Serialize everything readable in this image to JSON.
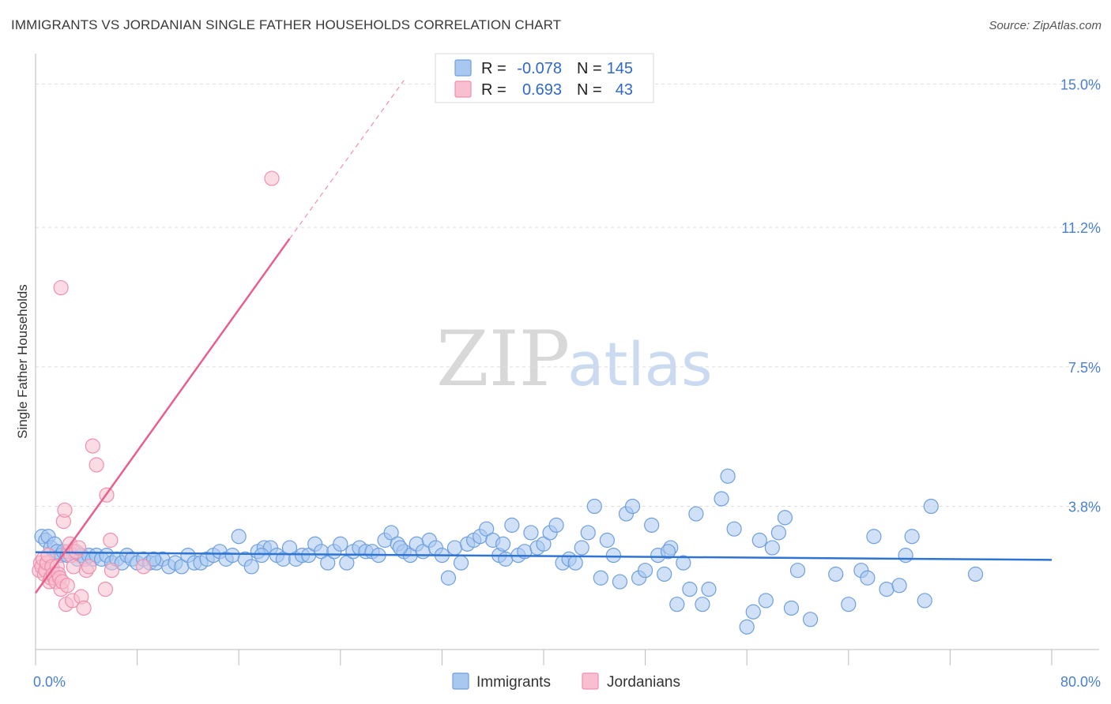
{
  "header": {
    "title": "IMMIGRANTS VS JORDANIAN SINGLE FATHER HOUSEHOLDS CORRELATION CHART",
    "source": "Source: ZipAtlas.com"
  },
  "watermark": {
    "zip": "ZIP",
    "atlas": "atlas"
  },
  "legend": {
    "r_label": "R =",
    "n_label": "N =",
    "immigrants": {
      "r": "-0.078",
      "n": "145"
    },
    "jordanians": {
      "r": "0.693",
      "n": "43"
    }
  },
  "colors": {
    "immigrants_fill": "#a9c8f0",
    "immigrants_stroke": "#6e9fe0",
    "immigrants_line": "#2e74d2",
    "jordanians_fill": "#f7bfd0",
    "jordanians_stroke": "#ef8fae",
    "jordanians_line": "#e8608a",
    "tick_label": "#4a7fd0",
    "grid": "#dddddd"
  },
  "chart_data": {
    "type": "scatter",
    "title": "IMMIGRANTS VS JORDANIAN SINGLE FATHER HOUSEHOLDS CORRELATION CHART",
    "xlabel": "",
    "ylabel": "Single Father Households",
    "xlim": [
      0,
      80
    ],
    "ylim": [
      0,
      15.6
    ],
    "x_tick_labels": [
      "0.0%",
      "80.0%"
    ],
    "y_ticks": [
      3.8,
      7.5,
      11.2,
      15.0
    ],
    "y_tick_labels": [
      "3.8%",
      "7.5%",
      "11.2%",
      "15.0%"
    ],
    "grid": "horizontal dashed",
    "legend_position": "top-center",
    "series": [
      {
        "name": "Immigrants",
        "points": [
          [
            0.5,
            3.0
          ],
          [
            0.8,
            2.9
          ],
          [
            1.0,
            3.0
          ],
          [
            1.2,
            2.7
          ],
          [
            1.5,
            2.8
          ],
          [
            1.7,
            2.6
          ],
          [
            2.0,
            2.5
          ],
          [
            2.2,
            2.6
          ],
          [
            2.5,
            2.5
          ],
          [
            2.8,
            2.5
          ],
          [
            3.0,
            2.6
          ],
          [
            3.3,
            2.4
          ],
          [
            3.6,
            2.5
          ],
          [
            3.9,
            2.4
          ],
          [
            4.2,
            2.5
          ],
          [
            4.5,
            2.4
          ],
          [
            4.8,
            2.5
          ],
          [
            5.2,
            2.4
          ],
          [
            5.6,
            2.5
          ],
          [
            6.0,
            2.3
          ],
          [
            6.4,
            2.4
          ],
          [
            6.8,
            2.3
          ],
          [
            7.2,
            2.5
          ],
          [
            7.6,
            2.4
          ],
          [
            8.0,
            2.3
          ],
          [
            8.5,
            2.4
          ],
          [
            9.0,
            2.3
          ],
          [
            9.5,
            2.3
          ],
          [
            10.0,
            2.4
          ],
          [
            10.5,
            2.2
          ],
          [
            11.0,
            2.3
          ],
          [
            11.5,
            2.2
          ],
          [
            12.0,
            2.5
          ],
          [
            12.5,
            2.3
          ],
          [
            13.0,
            2.3
          ],
          [
            13.5,
            2.4
          ],
          [
            14.0,
            2.5
          ],
          [
            14.5,
            2.6
          ],
          [
            15.0,
            2.4
          ],
          [
            15.5,
            2.5
          ],
          [
            16.0,
            3.0
          ],
          [
            16.5,
            2.4
          ],
          [
            17.0,
            2.2
          ],
          [
            17.5,
            2.6
          ],
          [
            18.0,
            2.7
          ],
          [
            18.5,
            2.7
          ],
          [
            19.0,
            2.5
          ],
          [
            19.5,
            2.4
          ],
          [
            20.0,
            2.7
          ],
          [
            20.5,
            2.4
          ],
          [
            21.0,
            2.5
          ],
          [
            21.5,
            2.5
          ],
          [
            22.0,
            2.8
          ],
          [
            22.5,
            2.6
          ],
          [
            23.0,
            2.3
          ],
          [
            23.5,
            2.6
          ],
          [
            24.0,
            2.8
          ],
          [
            24.5,
            2.3
          ],
          [
            25.0,
            2.6
          ],
          [
            25.5,
            2.7
          ],
          [
            26.0,
            2.6
          ],
          [
            26.5,
            2.6
          ],
          [
            27.0,
            2.5
          ],
          [
            27.5,
            2.9
          ],
          [
            28.0,
            3.1
          ],
          [
            28.5,
            2.8
          ],
          [
            29.0,
            2.6
          ],
          [
            29.5,
            2.5
          ],
          [
            30.0,
            2.8
          ],
          [
            30.5,
            2.6
          ],
          [
            31.0,
            2.9
          ],
          [
            31.5,
            2.7
          ],
          [
            32.0,
            2.5
          ],
          [
            32.5,
            1.9
          ],
          [
            33.0,
            2.7
          ],
          [
            33.5,
            2.3
          ],
          [
            34.0,
            2.8
          ],
          [
            34.5,
            2.9
          ],
          [
            35.0,
            3.0
          ],
          [
            35.5,
            3.2
          ],
          [
            36.0,
            2.9
          ],
          [
            36.5,
            2.5
          ],
          [
            37.0,
            2.4
          ],
          [
            37.5,
            3.3
          ],
          [
            38.0,
            2.5
          ],
          [
            38.5,
            2.6
          ],
          [
            39.0,
            3.1
          ],
          [
            39.5,
            2.7
          ],
          [
            40.0,
            2.8
          ],
          [
            40.5,
            3.1
          ],
          [
            41.0,
            3.3
          ],
          [
            41.5,
            2.3
          ],
          [
            42.0,
            2.4
          ],
          [
            42.5,
            2.3
          ],
          [
            43.0,
            2.7
          ],
          [
            43.5,
            3.1
          ],
          [
            44.0,
            3.8
          ],
          [
            44.5,
            1.9
          ],
          [
            45.0,
            2.9
          ],
          [
            45.5,
            2.5
          ],
          [
            46.0,
            1.8
          ],
          [
            46.5,
            3.6
          ],
          [
            47.0,
            3.8
          ],
          [
            47.5,
            1.9
          ],
          [
            48.0,
            2.1
          ],
          [
            48.5,
            3.3
          ],
          [
            49.0,
            2.5
          ],
          [
            49.5,
            2.0
          ],
          [
            50.0,
            2.7
          ],
          [
            50.5,
            1.2
          ],
          [
            51.0,
            2.3
          ],
          [
            51.5,
            1.6
          ],
          [
            52.0,
            3.6
          ],
          [
            52.5,
            1.2
          ],
          [
            53.0,
            1.6
          ],
          [
            54.0,
            4.0
          ],
          [
            54.5,
            4.6
          ],
          [
            55.0,
            3.2
          ],
          [
            56.0,
            0.6
          ],
          [
            56.5,
            1.0
          ],
          [
            57.0,
            2.9
          ],
          [
            57.5,
            1.3
          ],
          [
            58.0,
            2.7
          ],
          [
            58.5,
            3.1
          ],
          [
            59.0,
            3.5
          ],
          [
            59.5,
            1.1
          ],
          [
            60.0,
            2.1
          ],
          [
            61.0,
            0.8
          ],
          [
            63.0,
            2.0
          ],
          [
            64.0,
            1.2
          ],
          [
            65.0,
            2.1
          ],
          [
            65.5,
            1.9
          ],
          [
            66.0,
            3.0
          ],
          [
            67.0,
            1.6
          ],
          [
            68.0,
            1.7
          ],
          [
            68.5,
            2.5
          ],
          [
            69.0,
            3.0
          ],
          [
            70.0,
            1.3
          ],
          [
            70.5,
            3.8
          ],
          [
            74.0,
            2.0
          ],
          [
            49.8,
            2.6
          ],
          [
            28.7,
            2.7
          ],
          [
            36.8,
            2.8
          ],
          [
            17.8,
            2.5
          ],
          [
            9.3,
            2.4
          ]
        ],
        "trend": {
          "x": [
            0,
            80
          ],
          "y": [
            2.58,
            2.38
          ]
        }
      },
      {
        "name": "Jordanians",
        "points": [
          [
            0.3,
            2.1
          ],
          [
            0.4,
            2.3
          ],
          [
            0.5,
            2.2
          ],
          [
            0.6,
            2.4
          ],
          [
            0.7,
            2.0
          ],
          [
            0.8,
            2.1
          ],
          [
            0.9,
            2.3
          ],
          [
            1.0,
            2.5
          ],
          [
            1.1,
            1.8
          ],
          [
            1.2,
            1.9
          ],
          [
            1.3,
            2.2
          ],
          [
            1.4,
            2.0
          ],
          [
            1.5,
            1.9
          ],
          [
            1.6,
            1.8
          ],
          [
            1.7,
            2.2
          ],
          [
            1.8,
            2.0
          ],
          [
            1.9,
            1.9
          ],
          [
            2.0,
            1.6
          ],
          [
            2.1,
            1.8
          ],
          [
            2.2,
            3.4
          ],
          [
            2.3,
            3.7
          ],
          [
            2.4,
            1.2
          ],
          [
            2.5,
            1.7
          ],
          [
            2.6,
            2.6
          ],
          [
            2.7,
            2.8
          ],
          [
            2.8,
            2.5
          ],
          [
            2.9,
            1.3
          ],
          [
            3.0,
            2.2
          ],
          [
            3.2,
            2.6
          ],
          [
            3.4,
            2.7
          ],
          [
            3.6,
            1.4
          ],
          [
            3.8,
            1.1
          ],
          [
            4.0,
            2.1
          ],
          [
            4.2,
            2.2
          ],
          [
            4.5,
            5.4
          ],
          [
            4.8,
            4.9
          ],
          [
            5.5,
            1.6
          ],
          [
            5.6,
            4.1
          ],
          [
            5.9,
            2.9
          ],
          [
            6.0,
            2.1
          ],
          [
            2.0,
            9.6
          ],
          [
            18.6,
            12.5
          ],
          [
            8.5,
            2.2
          ]
        ],
        "trend": {
          "x": [
            0,
            20.0
          ],
          "y": [
            1.5,
            10.9
          ]
        },
        "trend_extension": {
          "x": [
            20.0,
            29.0
          ],
          "y": [
            10.9,
            15.1
          ]
        }
      }
    ]
  },
  "bottom_legend": {
    "immigrants": "Immigrants",
    "jordanians": "Jordanians"
  }
}
